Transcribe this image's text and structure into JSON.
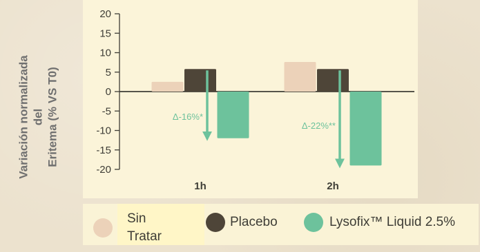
{
  "chart_data": {
    "type": "bar",
    "ylabel": "Variación normalizada\ndel\nEritema (% VS T0)",
    "categories": [
      "1h",
      "2h"
    ],
    "ylim": [
      -20,
      20
    ],
    "yticks": [
      20,
      15,
      10,
      5,
      0,
      -5,
      -10,
      -15,
      -20
    ],
    "grid": false,
    "legend_position": "bottom",
    "series": [
      {
        "name": "Sin Tratar",
        "color": "#ecd2b9",
        "values": [
          2.5,
          7.6
        ]
      },
      {
        "name": "Placebo",
        "color": "#4e4538",
        "values": [
          5.8,
          5.8
        ]
      },
      {
        "name": "Lysofix™ Liquid 2.5%",
        "color": "#6dc29c",
        "values": [
          -12.0,
          -19.0
        ]
      }
    ],
    "annotations": [
      {
        "text": "Δ-16%*",
        "category": "1h"
      },
      {
        "text": "Δ-22%**",
        "category": "2h"
      }
    ],
    "annotation_color": "#6dc29c"
  },
  "colors": {
    "axis": "#3e3d36",
    "text": "#3e3d36"
  }
}
